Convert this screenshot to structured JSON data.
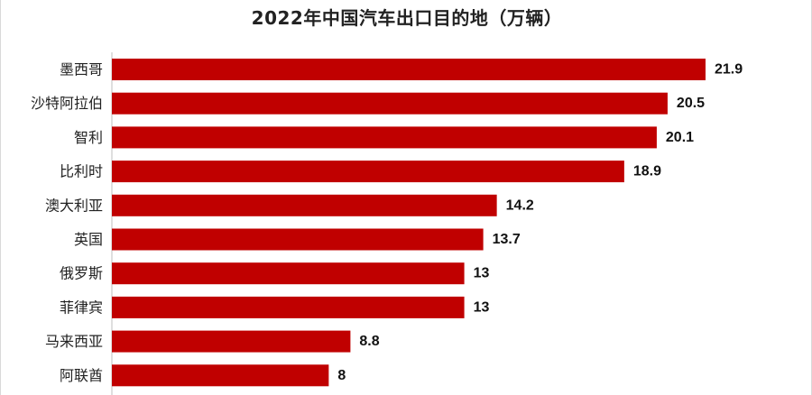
{
  "chart_data": {
    "type": "bar",
    "orientation": "horizontal",
    "title": "2022年中国汽车出口目的地（万辆）",
    "categories": [
      "墨西哥",
      "沙特阿拉伯",
      "智利",
      "比利时",
      "澳大利亚",
      "英国",
      "俄罗斯",
      "菲律宾",
      "马来西亚",
      "阿联酋"
    ],
    "values": [
      21.9,
      20.5,
      20.1,
      18.9,
      14.2,
      13.7,
      13,
      13,
      8.8,
      8
    ],
    "value_labels": [
      "21.9",
      "20.5",
      "20.1",
      "18.9",
      "14.2",
      "13.7",
      "13",
      "13",
      "8.8",
      "8"
    ],
    "xlabel": "",
    "ylabel": "",
    "xlim": [
      0,
      21.9
    ],
    "grid": false,
    "legend": "none",
    "bar_color": "#c00000"
  }
}
